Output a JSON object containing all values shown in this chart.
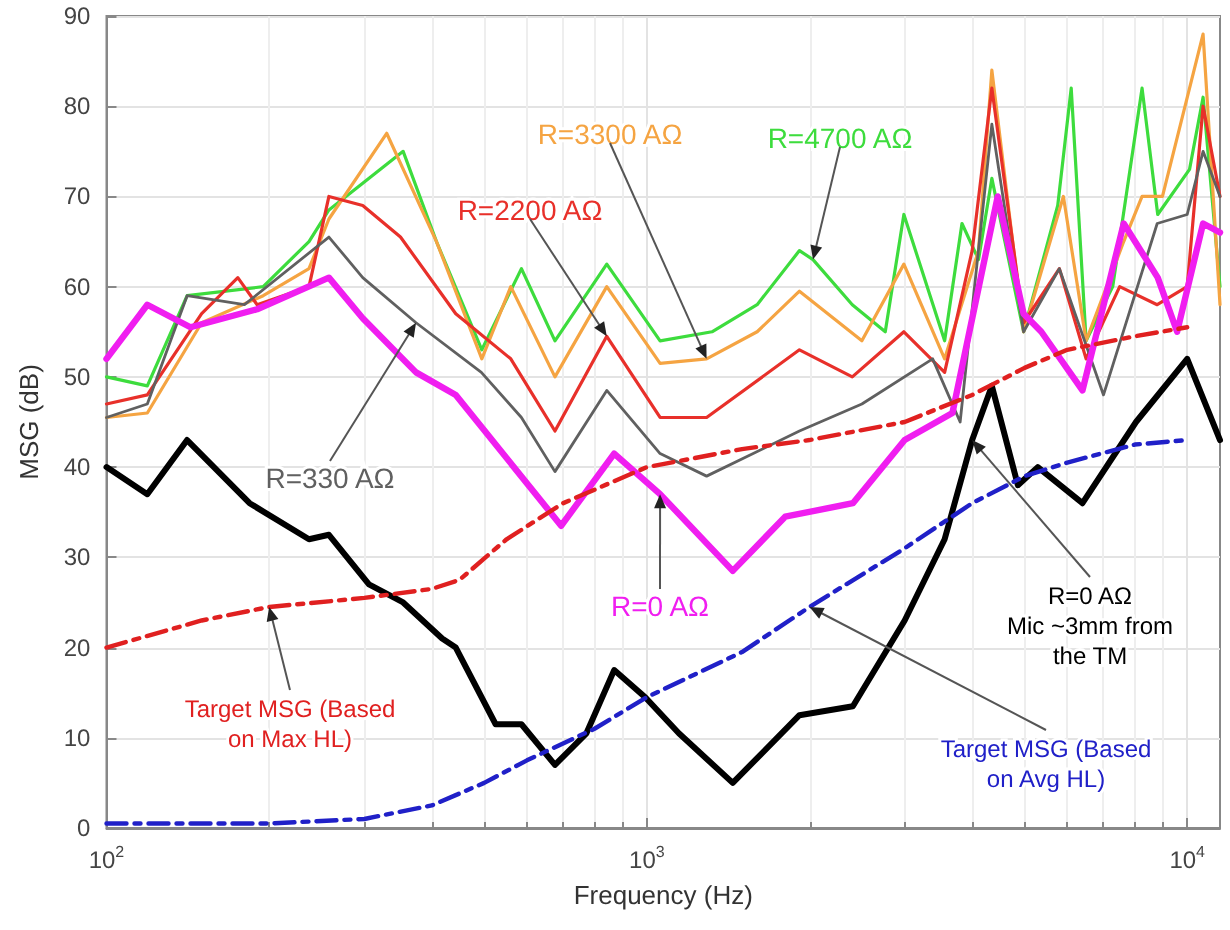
{
  "chart_data": {
    "type": "line",
    "xlabel": "Frequency (Hz)",
    "ylabel": "MSG (dB)",
    "log": "x",
    "xlim": [
      100,
      11500
    ],
    "xticks": [
      {
        "value": 100,
        "label": "10$^{2}$"
      },
      {
        "value": 1000,
        "label": "10$^{3}$"
      },
      {
        "value": 10000,
        "label": "10$^{4}$"
      }
    ],
    "ylim": [
      0,
      90
    ],
    "yticks": [
      0,
      10,
      20,
      30,
      40,
      50,
      60,
      70,
      80,
      90
    ],
    "grid": true,
    "legend": false,
    "marker": "none",
    "series": [
      {
        "name": "R=4700 AΩ",
        "color": "#3ddc3d",
        "x": [
          100,
          119,
          141,
          195,
          237,
          258,
          354,
          408,
          495,
          586,
          676,
          843,
          1058,
          1320,
          1600,
          1916,
          2030,
          2400,
          2762,
          2990,
          3557,
          3830,
          4110,
          4350,
          4980,
          5760,
          6100,
          6500,
          7280,
          8250,
          8820,
          10100,
          10700,
          11500
        ],
        "values": [
          50,
          49,
          59,
          60,
          65,
          68.5,
          75,
          65,
          53,
          62,
          54,
          62.5,
          54,
          55,
          58,
          64,
          63,
          58,
          55,
          68,
          54,
          67,
          63,
          72,
          55,
          69,
          82,
          54,
          60,
          82,
          68,
          73,
          81,
          60
        ]
      },
      {
        "name": "R=3300 AΩ",
        "color": "#f5a442",
        "x": [
          100,
          119,
          150,
          195,
          237,
          258,
          330,
          408,
          495,
          560,
          676,
          843,
          1058,
          1290,
          1600,
          1916,
          2500,
          2990,
          3557,
          4110,
          4350,
          4980,
          5900,
          6500,
          7630,
          8250,
          9000,
          10700,
          11500
        ],
        "values": [
          45.5,
          46,
          56,
          59,
          62,
          67.5,
          77,
          65,
          52,
          60,
          50,
          60,
          51.5,
          52,
          55,
          59.5,
          54,
          62.5,
          52,
          64,
          84,
          55,
          70,
          54,
          65,
          70,
          70,
          88,
          58
        ]
      },
      {
        "name": "R=2200 AΩ",
        "color": "#e8302a",
        "x": [
          100,
          119,
          150,
          175,
          190,
          237,
          258,
          298,
          350,
          443,
          560,
          676,
          843,
          1058,
          1290,
          1916,
          2400,
          2990,
          3557,
          4000,
          4350,
          4980,
          5800,
          6500,
          7500,
          8800,
          10000,
          10700,
          11500
        ],
        "values": [
          47,
          48,
          57,
          61,
          58,
          60,
          70,
          69,
          65.5,
          57,
          52,
          44,
          54.5,
          45.5,
          45.5,
          53,
          50,
          55,
          50.5,
          64,
          82,
          56,
          62,
          52,
          60,
          58,
          60,
          80,
          70
        ]
      },
      {
        "name": "R=330 AΩ",
        "color": "#606060",
        "x": [
          100,
          119,
          141,
          180,
          258,
          298,
          374,
          494,
          586,
          676,
          843,
          1058,
          1290,
          1916,
          2500,
          3380,
          3800,
          4350,
          4980,
          5800,
          7000,
          8800,
          10000,
          10700,
          11500
        ],
        "values": [
          45.5,
          47,
          59,
          58,
          65.5,
          61,
          56,
          50.5,
          45.5,
          39.5,
          48.5,
          41.5,
          39,
          44,
          47,
          52,
          45,
          78,
          55,
          62,
          48,
          67,
          68,
          75,
          70
        ]
      },
      {
        "name": "R=0 AΩ",
        "color": "#f01ef0",
        "x": [
          100,
          119,
          143,
          190,
          258,
          298,
          374,
          443,
          694,
          870,
          1058,
          1442,
          1803,
          2406,
          3000,
          3677,
          4460,
          4980,
          5370,
          6400,
          7630,
          8820,
          9580,
          10700,
          11500
        ],
        "values": [
          52,
          58,
          55.5,
          57.5,
          61,
          56.5,
          50.5,
          48,
          33.5,
          41.5,
          37,
          28.5,
          34.5,
          36,
          43,
          46,
          70,
          57,
          55,
          48.5,
          67,
          61,
          55,
          67,
          66
        ]
      },
      {
        "name": "R=0 AΩ Mic ~3mm from the TM",
        "color": "#000000",
        "x": [
          100,
          119,
          141,
          184,
          237,
          258,
          306,
          354,
          418,
          443,
          525,
          586,
          676,
          773,
          870,
          993,
          1146,
          1442,
          1916,
          2406,
          3000,
          3557,
          4000,
          4350,
          4860,
          5290,
          6400,
          8040,
          10000,
          11500
        ],
        "values": [
          40,
          37,
          43,
          36,
          32,
          32.5,
          27,
          25,
          21,
          20,
          11.5,
          11.5,
          7,
          10.5,
          17.5,
          14.5,
          10.5,
          5,
          12.5,
          13.5,
          23,
          32,
          43,
          49,
          38,
          40,
          36,
          45,
          52,
          43
        ]
      },
      {
        "name": "Target MSG (Based on Max HL)",
        "color": "#e02020",
        "line_style": "dashed",
        "x": [
          100,
          150,
          200,
          300,
          400,
          450,
          550,
          700,
          1000,
          1500,
          2000,
          3000,
          4000,
          5000,
          6000,
          8000,
          10000
        ],
        "values": [
          20,
          23,
          24.5,
          25.5,
          26.5,
          27.5,
          32,
          36,
          40,
          42,
          43,
          45,
          48,
          51,
          53,
          54.5,
          55.5
        ]
      },
      {
        "name": "Target MSG (Based on Avg HL)",
        "color": "#2020c8",
        "line_style": "dashed",
        "x": [
          100,
          200,
          300,
          400,
          500,
          600,
          800,
          1000,
          1500,
          2000,
          3000,
          4000,
          5000,
          6000,
          8000,
          10000
        ],
        "values": [
          0.5,
          0.5,
          1,
          2.5,
          5,
          7.5,
          11,
          14.5,
          19.5,
          24.5,
          31,
          36,
          39,
          40.5,
          42.5,
          43
        ]
      }
    ]
  }
}
